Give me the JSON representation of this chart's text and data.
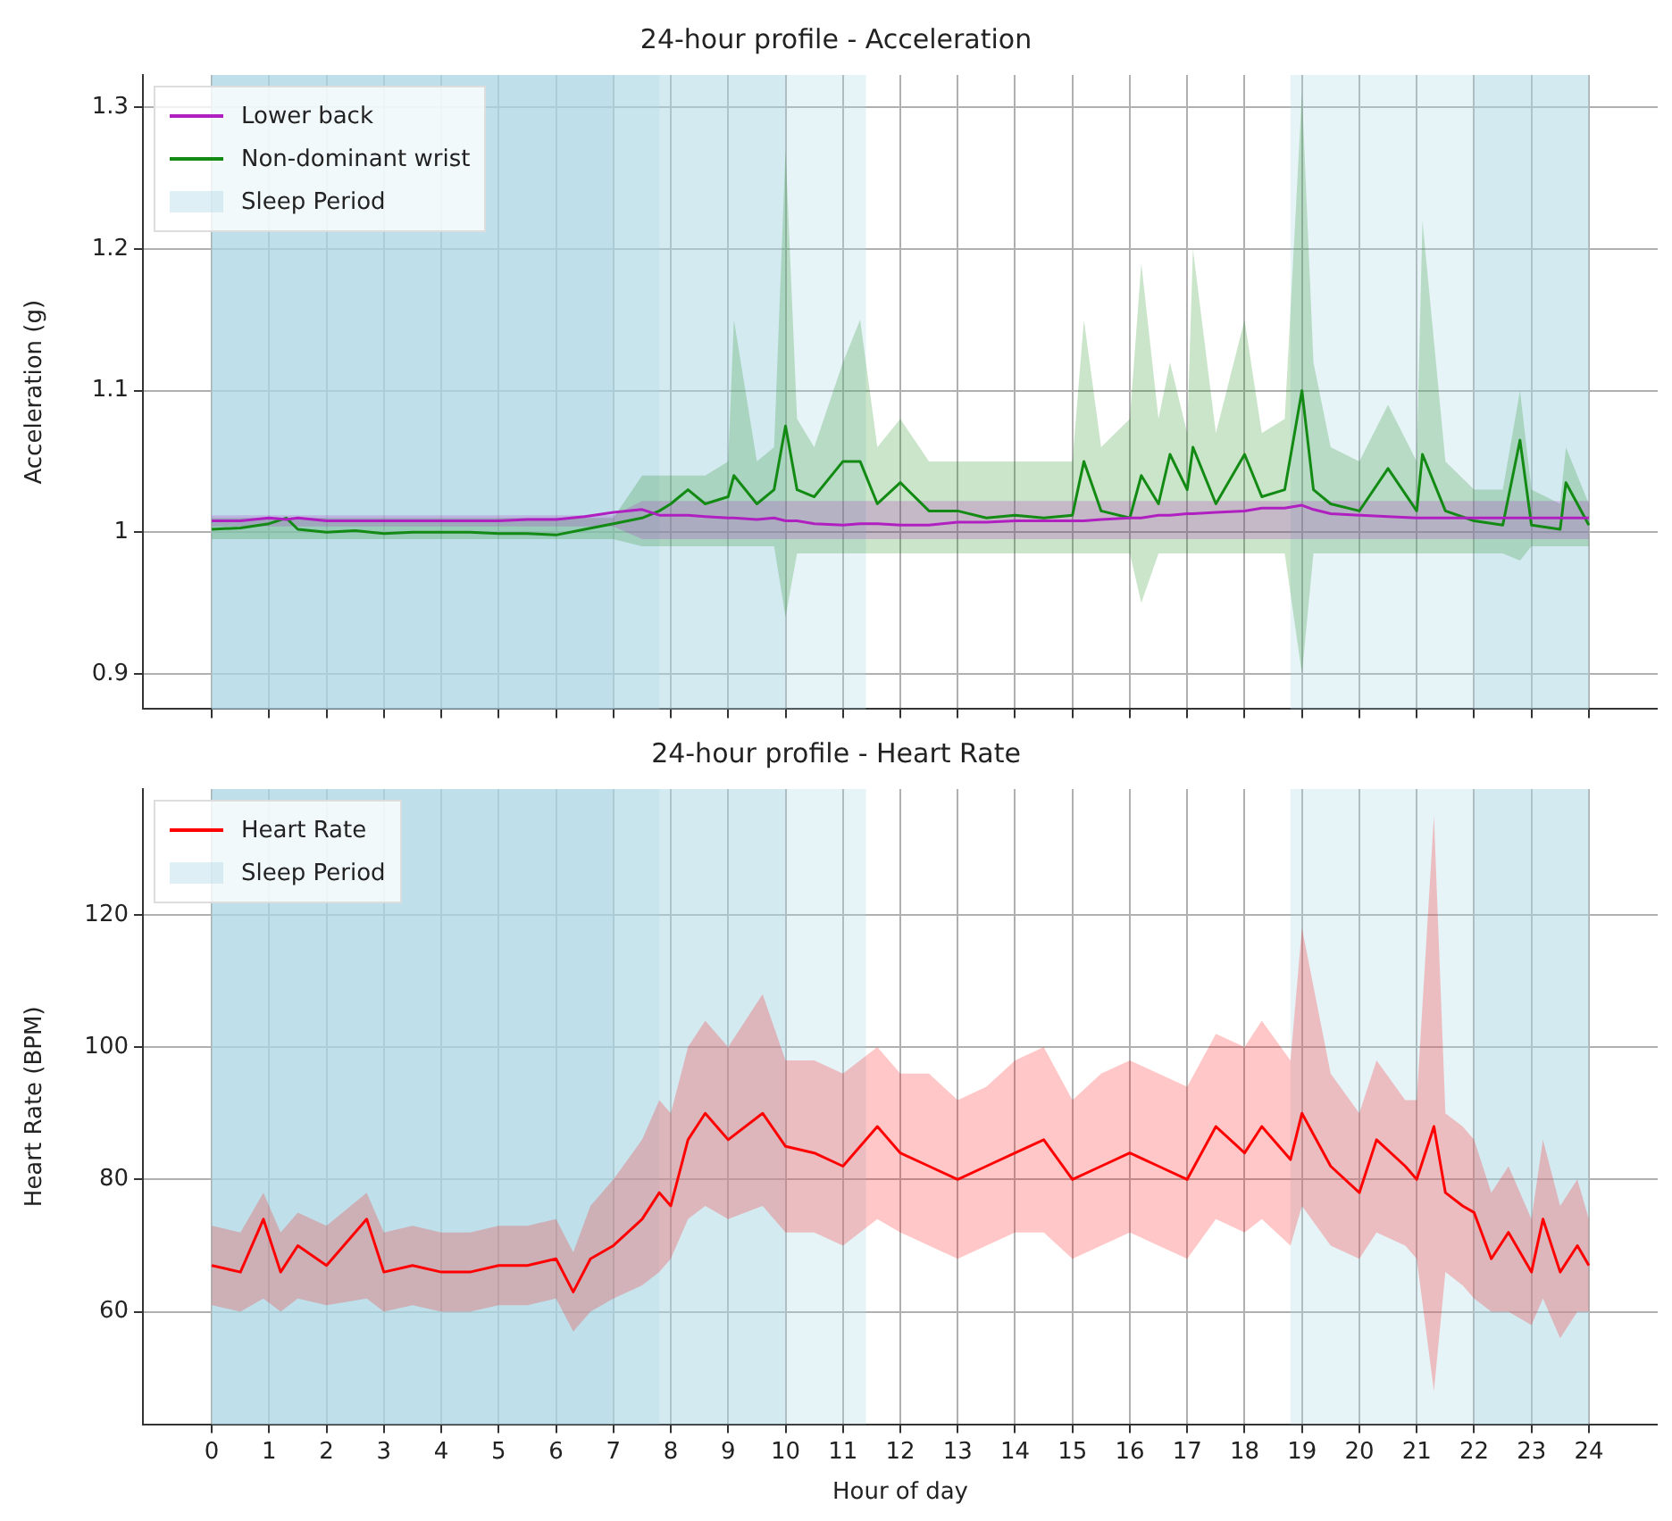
{
  "chart_data": [
    {
      "type": "line",
      "title": "24-hour profile - Acceleration",
      "ylabel": "Acceleration (g)",
      "xlim": [
        -1.2,
        25.2
      ],
      "xticks": [
        0,
        1,
        2,
        3,
        4,
        5,
        6,
        7,
        8,
        9,
        10,
        11,
        12,
        13,
        14,
        15,
        16,
        17,
        18,
        19,
        20,
        21,
        22,
        23,
        24
      ],
      "ylim": [
        0.875,
        1.323
      ],
      "yticks": [
        0.9,
        1.0,
        1.1,
        1.2,
        1.3
      ],
      "grid": true,
      "legend": "top left",
      "marker": "none",
      "line_style": "solid",
      "tick_labels": "y",
      "x": [
        0,
        0.5,
        1,
        1.3,
        1.5,
        2,
        2.5,
        3,
        3.5,
        4,
        4.5,
        5,
        5.5,
        6,
        6.5,
        7,
        7.5,
        7.8,
        8,
        8.3,
        8.6,
        9,
        9.1,
        9.5,
        9.8,
        10,
        10.2,
        10.5,
        11,
        11.3,
        11.6,
        12,
        12.5,
        13,
        13.5,
        14,
        14.5,
        15,
        15.2,
        15.5,
        16,
        16.2,
        16.5,
        16.7,
        17,
        17.1,
        17.5,
        18,
        18.3,
        18.7,
        19,
        19.2,
        19.5,
        20,
        20.5,
        21,
        21.1,
        21.5,
        22,
        22.5,
        22.8,
        23,
        23.5,
        23.6,
        24
      ],
      "series": [
        {
          "name": "Lower back",
          "color": "#b020c0",
          "values": [
            1.008,
            1.008,
            1.01,
            1.009,
            1.01,
            1.008,
            1.008,
            1.008,
            1.008,
            1.008,
            1.008,
            1.008,
            1.009,
            1.009,
            1.011,
            1.014,
            1.016,
            1.012,
            1.012,
            1.012,
            1.011,
            1.01,
            1.01,
            1.009,
            1.01,
            1.008,
            1.008,
            1.006,
            1.005,
            1.006,
            1.006,
            1.005,
            1.005,
            1.007,
            1.007,
            1.008,
            1.008,
            1.008,
            1.008,
            1.009,
            1.01,
            1.01,
            1.012,
            1.012,
            1.013,
            1.013,
            1.014,
            1.015,
            1.017,
            1.017,
            1.019,
            1.016,
            1.013,
            1.012,
            1.011,
            1.01,
            1.01,
            1.01,
            1.01,
            1.01,
            1.01,
            1.01,
            1.01,
            1.01,
            1.01
          ],
          "lower": [
            1.004,
            1.004,
            1.004,
            1.004,
            1.004,
            1.004,
            1.004,
            1.004,
            1.004,
            1.004,
            1.004,
            1.004,
            1.004,
            1.004,
            1.004,
            1.004,
            0.995,
            0.995,
            0.995,
            0.995,
            0.995,
            0.995,
            0.995,
            0.995,
            0.995,
            0.995,
            0.995,
            0.995,
            0.995,
            0.995,
            0.995,
            0.995,
            0.995,
            0.995,
            0.995,
            0.995,
            0.995,
            0.995,
            0.995,
            0.995,
            0.995,
            0.995,
            0.995,
            0.995,
            0.995,
            0.995,
            0.995,
            0.995,
            0.995,
            0.995,
            0.995,
            0.995,
            0.995,
            0.995,
            0.995,
            0.995,
            0.995,
            0.995,
            0.995,
            0.995,
            0.995,
            0.995,
            0.995,
            0.995,
            0.995
          ],
          "upper": [
            1.012,
            1.012,
            1.012,
            1.012,
            1.012,
            1.012,
            1.012,
            1.012,
            1.012,
            1.012,
            1.012,
            1.012,
            1.012,
            1.012,
            1.012,
            1.012,
            1.022,
            1.022,
            1.022,
            1.022,
            1.022,
            1.022,
            1.022,
            1.022,
            1.022,
            1.022,
            1.022,
            1.022,
            1.022,
            1.022,
            1.022,
            1.022,
            1.022,
            1.022,
            1.022,
            1.022,
            1.022,
            1.022,
            1.022,
            1.022,
            1.022,
            1.022,
            1.022,
            1.022,
            1.022,
            1.022,
            1.022,
            1.022,
            1.022,
            1.022,
            1.022,
            1.022,
            1.022,
            1.022,
            1.022,
            1.022,
            1.022,
            1.022,
            1.022,
            1.022,
            1.022,
            1.022,
            1.022,
            1.022,
            1.022
          ]
        },
        {
          "name": "Non-dominant wrist",
          "color": "#138a13",
          "values": [
            1.002,
            1.003,
            1.006,
            1.01,
            1.002,
            1.0,
            1.001,
            0.999,
            1.0,
            1.0,
            1.0,
            0.999,
            0.999,
            0.998,
            1.002,
            1.006,
            1.01,
            1.015,
            1.02,
            1.03,
            1.02,
            1.025,
            1.04,
            1.02,
            1.03,
            1.075,
            1.03,
            1.025,
            1.05,
            1.05,
            1.02,
            1.035,
            1.015,
            1.015,
            1.01,
            1.012,
            1.01,
            1.012,
            1.05,
            1.015,
            1.01,
            1.04,
            1.02,
            1.055,
            1.03,
            1.06,
            1.02,
            1.055,
            1.025,
            1.03,
            1.1,
            1.03,
            1.02,
            1.015,
            1.045,
            1.015,
            1.055,
            1.015,
            1.008,
            1.005,
            1.065,
            1.005,
            1.002,
            1.035,
            1.005
          ],
          "lower": [
            0.995,
            0.995,
            0.995,
            0.995,
            0.995,
            0.995,
            0.995,
            0.995,
            0.995,
            0.995,
            0.995,
            0.995,
            0.995,
            0.995,
            0.995,
            0.995,
            0.99,
            0.99,
            0.99,
            0.99,
            0.99,
            0.99,
            0.99,
            0.99,
            0.99,
            0.94,
            0.985,
            0.985,
            0.985,
            0.985,
            0.985,
            0.985,
            0.985,
            0.985,
            0.985,
            0.985,
            0.985,
            0.985,
            0.985,
            0.985,
            0.985,
            0.95,
            0.985,
            0.985,
            0.985,
            0.985,
            0.985,
            0.985,
            0.985,
            0.985,
            0.9,
            0.985,
            0.985,
            0.985,
            0.985,
            0.985,
            0.985,
            0.985,
            0.985,
            0.985,
            0.98,
            0.99,
            0.99,
            0.99,
            0.99
          ],
          "upper": [
            1.01,
            1.01,
            1.01,
            1.01,
            1.01,
            1.01,
            1.01,
            1.01,
            1.01,
            1.01,
            1.01,
            1.01,
            1.01,
            1.01,
            1.01,
            1.01,
            1.04,
            1.04,
            1.04,
            1.04,
            1.04,
            1.05,
            1.15,
            1.05,
            1.06,
            1.27,
            1.08,
            1.06,
            1.12,
            1.15,
            1.06,
            1.08,
            1.05,
            1.05,
            1.05,
            1.05,
            1.05,
            1.05,
            1.15,
            1.06,
            1.08,
            1.19,
            1.08,
            1.12,
            1.07,
            1.2,
            1.07,
            1.15,
            1.07,
            1.08,
            1.31,
            1.12,
            1.06,
            1.05,
            1.09,
            1.05,
            1.22,
            1.05,
            1.03,
            1.03,
            1.1,
            1.03,
            1.02,
            1.06,
            1.02
          ]
        }
      ],
      "bands": [
        {
          "axis": "x",
          "from": 0,
          "to": 11.4,
          "label": "Sleep Period",
          "color": "#add8e6"
        },
        {
          "axis": "x",
          "from": 0,
          "to": 10,
          "color": "#add8e6"
        },
        {
          "axis": "x",
          "from": 0,
          "to": 7.8,
          "color": "#add8e6"
        },
        {
          "axis": "x",
          "from": 0,
          "to": 7,
          "color": "#add8e6"
        },
        {
          "axis": "x",
          "from": 18.8,
          "to": 24,
          "color": "#add8e6"
        },
        {
          "axis": "x",
          "from": 22,
          "to": 24,
          "color": "#add8e6"
        }
      ]
    },
    {
      "type": "line",
      "title": "24-hour profile - Heart Rate",
      "xlabel": "Hour of day",
      "ylabel": "Heart Rate (BPM)",
      "xlim": [
        -1.2,
        25.2
      ],
      "xticks": [
        0,
        1,
        2,
        3,
        4,
        5,
        6,
        7,
        8,
        9,
        10,
        11,
        12,
        13,
        14,
        15,
        16,
        17,
        18,
        19,
        20,
        21,
        22,
        23,
        24
      ],
      "ylim": [
        43,
        139
      ],
      "yticks": [
        60,
        80,
        100,
        120
      ],
      "grid": true,
      "legend": "top left",
      "marker": "none",
      "line_style": "solid",
      "x": [
        0,
        0.5,
        0.9,
        1.2,
        1.5,
        2,
        2.7,
        3,
        3.5,
        4,
        4.5,
        5,
        5.5,
        6,
        6.3,
        6.6,
        7,
        7.5,
        7.8,
        8,
        8.3,
        8.6,
        9,
        9.6,
        10,
        10.5,
        11,
        11.6,
        12,
        12.5,
        13,
        13.5,
        14,
        14.5,
        15,
        15.5,
        16,
        16.5,
        17,
        17.5,
        18,
        18.3,
        18.8,
        19,
        19.5,
        20,
        20.3,
        20.8,
        21,
        21.3,
        21.5,
        21.8,
        22,
        22.3,
        22.6,
        23,
        23.2,
        23.5,
        23.8,
        24
      ],
      "series": [
        {
          "name": "Heart Rate",
          "color": "#ff0000",
          "values": [
            67,
            66,
            74,
            66,
            70,
            67,
            74,
            66,
            67,
            66,
            66,
            67,
            67,
            68,
            63,
            68,
            70,
            74,
            78,
            76,
            86,
            90,
            86,
            90,
            85,
            84,
            82,
            88,
            84,
            82,
            80,
            82,
            84,
            86,
            80,
            82,
            84,
            82,
            80,
            88,
            84,
            88,
            83,
            90,
            82,
            78,
            86,
            82,
            80,
            88,
            78,
            76,
            75,
            68,
            72,
            66,
            74,
            66,
            70,
            67
          ],
          "lower": [
            61,
            60,
            62,
            60,
            62,
            61,
            62,
            60,
            61,
            60,
            60,
            61,
            61,
            62,
            57,
            60,
            62,
            64,
            66,
            68,
            74,
            76,
            74,
            76,
            72,
            72,
            70,
            74,
            72,
            70,
            68,
            70,
            72,
            72,
            68,
            70,
            72,
            70,
            68,
            74,
            72,
            74,
            70,
            76,
            70,
            68,
            72,
            70,
            68,
            48,
            66,
            64,
            62,
            60,
            60,
            58,
            62,
            56,
            60,
            60
          ],
          "upper": [
            73,
            72,
            78,
            72,
            75,
            73,
            78,
            72,
            73,
            72,
            72,
            73,
            73,
            74,
            69,
            76,
            80,
            86,
            92,
            90,
            100,
            104,
            100,
            108,
            98,
            98,
            96,
            100,
            96,
            96,
            92,
            94,
            98,
            100,
            92,
            96,
            98,
            96,
            94,
            102,
            100,
            104,
            98,
            118,
            96,
            90,
            98,
            92,
            92,
            135,
            90,
            88,
            86,
            78,
            82,
            74,
            86,
            76,
            80,
            74
          ]
        }
      ],
      "bands": [
        {
          "axis": "x",
          "from": 0,
          "to": 11.4,
          "label": "Sleep Period",
          "color": "#add8e6"
        },
        {
          "axis": "x",
          "from": 0,
          "to": 10,
          "color": "#add8e6"
        },
        {
          "axis": "x",
          "from": 0,
          "to": 7.8,
          "color": "#add8e6"
        },
        {
          "axis": "x",
          "from": 0,
          "to": 7,
          "color": "#add8e6"
        },
        {
          "axis": "x",
          "from": 18.8,
          "to": 24,
          "color": "#add8e6"
        },
        {
          "axis": "x",
          "from": 22,
          "to": 24,
          "color": "#add8e6"
        }
      ]
    }
  ]
}
